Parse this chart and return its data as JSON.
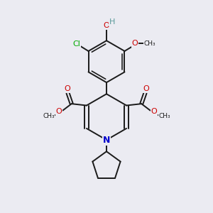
{
  "bg_color": "#ebebf2",
  "bond_color": "#1a1a1a",
  "bond_width": 1.4,
  "N_color": "#0000cc",
  "O_color": "#cc0000",
  "Cl_color": "#00aa00",
  "H_color": "#5a9a9a",
  "figsize": [
    3.0,
    3.0
  ],
  "dpi": 100,
  "xlim": [
    0,
    10
  ],
  "ylim": [
    0,
    10
  ]
}
